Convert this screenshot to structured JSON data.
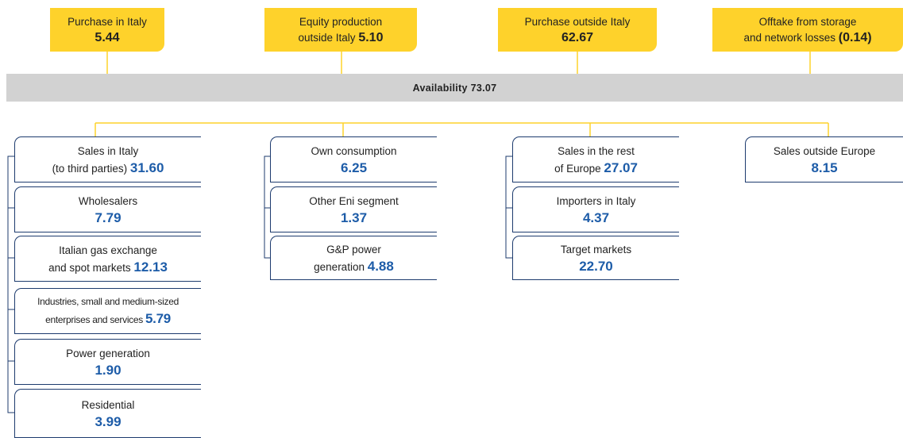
{
  "sources": [
    {
      "label": [
        "Purchase in Italy"
      ],
      "value": "5.44"
    },
    {
      "label": [
        "Equity production",
        "outside Italy"
      ],
      "value": "5.10"
    },
    {
      "label": [
        "Purchase outside Italy"
      ],
      "value": "62.67"
    },
    {
      "label": [
        "Offtake from storage",
        "and network losses"
      ],
      "value": "(0.14)"
    }
  ],
  "availability": {
    "label": "Availability",
    "value": "73.07"
  },
  "columns": [
    [
      {
        "label": [
          "Sales in Italy",
          "(to third parties)"
        ],
        "value": "31.60"
      },
      {
        "label": [
          "Wholesalers"
        ],
        "value": "7.79"
      },
      {
        "label": [
          "Italian gas exchange",
          "and spot markets"
        ],
        "value": "12.13"
      },
      {
        "label": [
          "Industries, small and medium-sized",
          "enterprises and services"
        ],
        "value": "5.79"
      },
      {
        "label": [
          "Power generation"
        ],
        "value": "1.90"
      },
      {
        "label": [
          "Residential"
        ],
        "value": "3.99"
      }
    ],
    [
      {
        "label": [
          "Own consumption"
        ],
        "value": "6.25"
      },
      {
        "label": [
          "Other Eni segment"
        ],
        "value": "1.37"
      },
      {
        "label": [
          "G&P power",
          "generation"
        ],
        "value": "4.88"
      }
    ],
    [
      {
        "label": [
          "Sales in the rest",
          "of Europe"
        ],
        "value": "27.07"
      },
      {
        "label": [
          "Importers in Italy"
        ],
        "value": "4.37"
      },
      {
        "label": [
          "Target markets"
        ],
        "value": "22.70"
      }
    ],
    [
      {
        "label": [
          "Sales outside Europe"
        ],
        "value": "8.15"
      }
    ]
  ]
}
